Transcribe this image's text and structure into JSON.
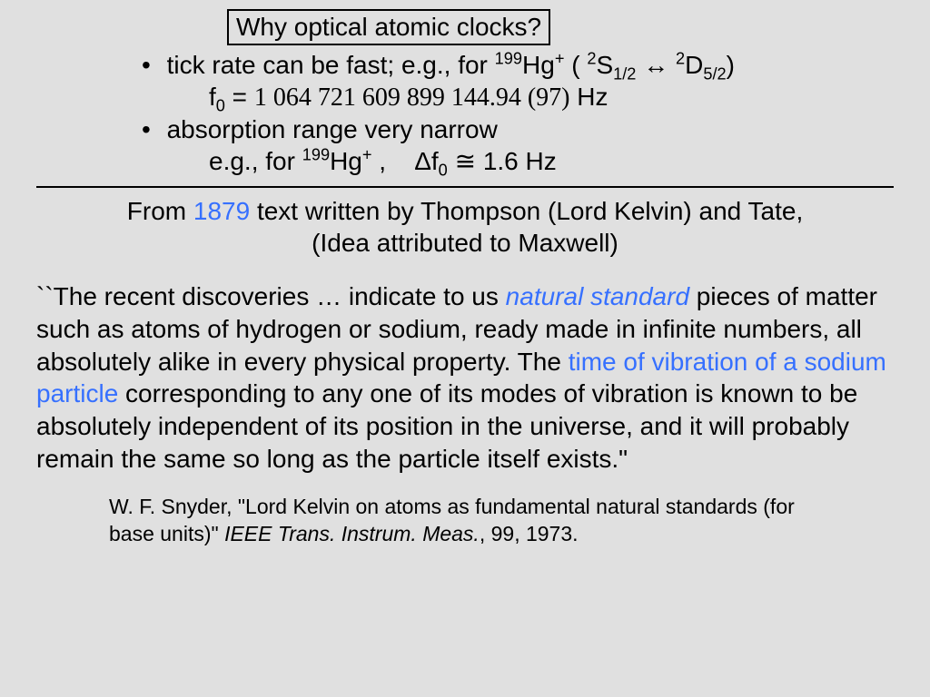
{
  "title": "Why optical atomic clocks?",
  "bullets": {
    "b1_pre": "tick rate can be fast; e.g., for ",
    "b1_isotope_num": "199",
    "b1_isotope": "Hg",
    "b1_charge": "+",
    "b1_paren_open": " ( ",
    "b1_term1_sup": "2",
    "b1_term1": "S",
    "b1_term1_sub": "1/2",
    "b1_arrow": " ↔ ",
    "b1_term2_sup": "2",
    "b1_term2": "D",
    "b1_term2_sub": "5/2",
    "b1_paren_close": ")",
    "b1_sub_f": "f",
    "b1_sub_fsub": "0",
    "b1_sub_eq": " = ",
    "b1_sub_val": "1 064 721 609 899 144.94 (97)",
    "b1_sub_unit": " Hz",
    "b2": "absorption range very narrow",
    "b2_sub_pre": "e.g., for ",
    "b2_isotope_num": "199",
    "b2_isotope": "Hg",
    "b2_charge": "+",
    "b2_sub_comma": " ,    ",
    "b2_delta": "Δ",
    "b2_f": "f",
    "b2_fsub": "0",
    "b2_approx": " ≅ ",
    "b2_val": "1.6 Hz"
  },
  "attribution": {
    "line1_pre": "From ",
    "year": "1879",
    "line1_post": " text written by Thompson (Lord Kelvin) and Tate,",
    "line2": "(Idea attributed to Maxwell)"
  },
  "quote": {
    "p1_a": "``The recent discoveries … indicate to us ",
    "p1_highlight1": "natural standard",
    "p1_b": " pieces of matter such as atoms of hydrogen or sodium, ready made in infinite numbers, all absolutely alike in every physical property. The ",
    "p1_highlight2": "time of vibration of a sodium particle",
    "p1_c": " corresponding to any one of its modes of vibration is known to be absolutely independent of its position in the universe, and it will probably remain the same so long as the particle itself exists.\""
  },
  "citation": {
    "author": "W. F. Snyder, \"Lord Kelvin on atoms as fundamental natural standards (for base units)\" ",
    "journal": "IEEE Trans. Instrum. Meas.",
    "rest": ", 99, 1973."
  },
  "colors": {
    "background": "#e0e0e0",
    "text": "#000000",
    "highlight": "#3670ff"
  }
}
